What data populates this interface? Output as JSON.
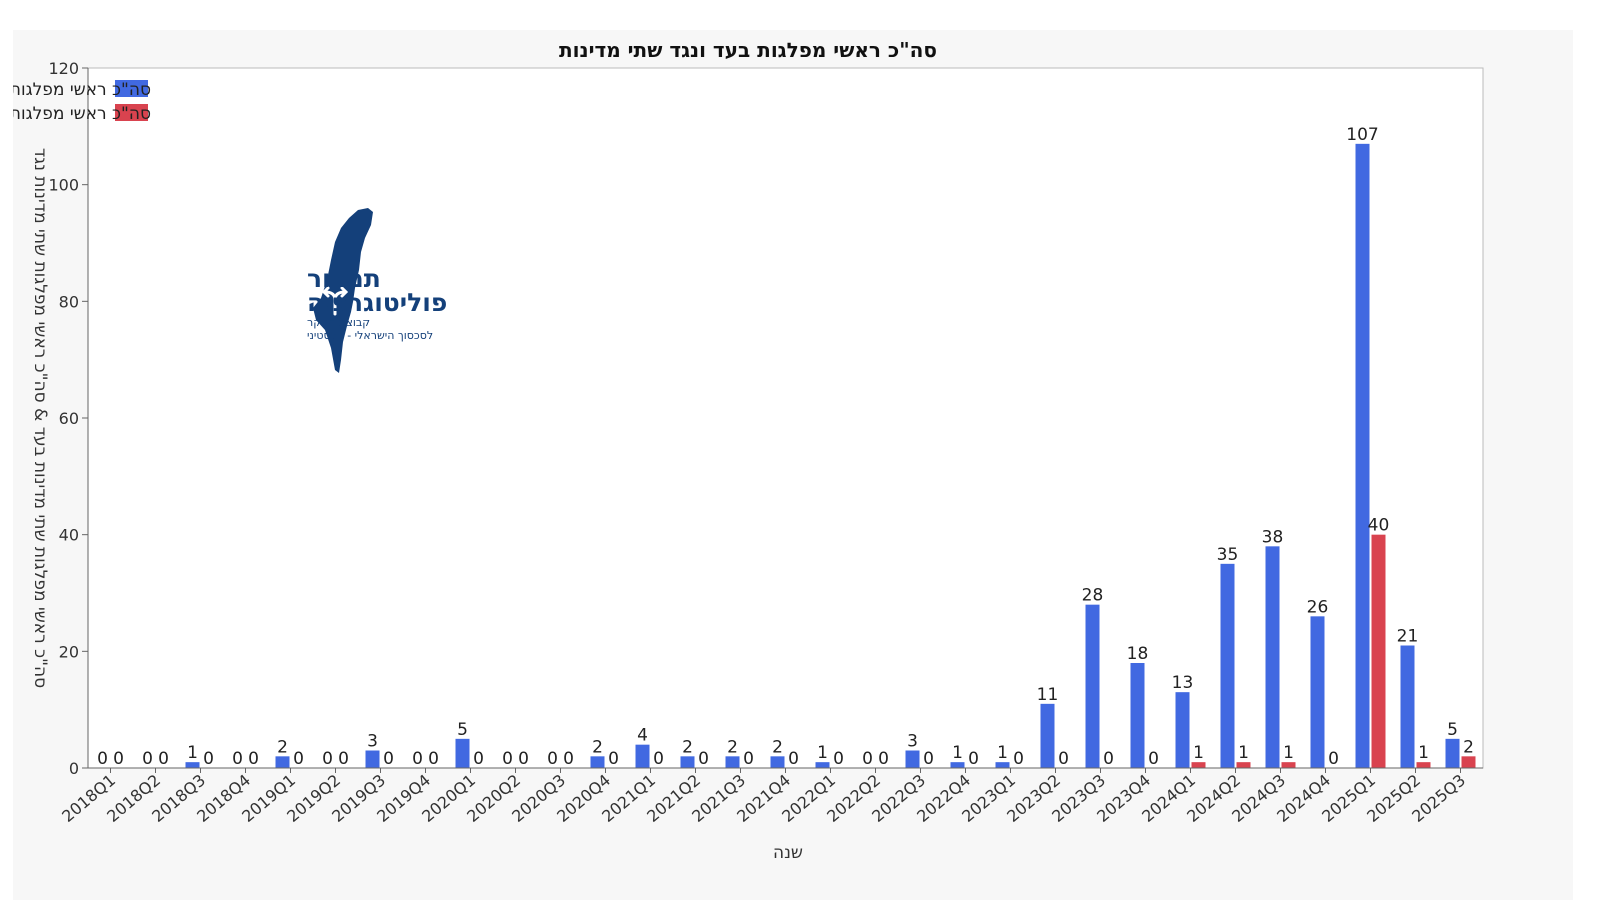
{
  "chart_data": {
    "type": "bar",
    "title": "סה\"כ ראשי מפלגות בעד ונגד שתי מדינות",
    "xlabel": "שנה",
    "ylabel": "סה\"כ ראשי מפלגות שתי מדינות בעד & סה\"כ ראשי מפלגות שתי מדינות נגד",
    "ylim": [
      0,
      120
    ],
    "yticks": [
      "0",
      "20",
      "40",
      "60",
      "80",
      "100",
      "120"
    ],
    "grid": false,
    "legend_position": "top-left",
    "categories": [
      "2018Q1",
      "2018Q2",
      "2018Q3",
      "2018Q4",
      "2019Q1",
      "2019Q2",
      "2019Q3",
      "2019Q4",
      "2020Q1",
      "2020Q2",
      "2020Q3",
      "2020Q4",
      "2021Q1",
      "2021Q2",
      "2021Q3",
      "2021Q4",
      "2022Q1",
      "2022Q2",
      "2022Q3",
      "2022Q4",
      "2023Q1",
      "2023Q2",
      "2023Q3",
      "2023Q4",
      "2024Q1",
      "2024Q2",
      "2024Q3",
      "2024Q4",
      "2025Q1",
      "2025Q2",
      "2025Q3"
    ],
    "series": [
      {
        "name": "סה\"כ ראשי מפלגות שתי מדינות בעד",
        "color": "#4169e1",
        "values": [
          0,
          0,
          1,
          0,
          2,
          0,
          3,
          0,
          5,
          0,
          0,
          2,
          4,
          2,
          2,
          2,
          1,
          0,
          3,
          1,
          1,
          11,
          28,
          18,
          13,
          35,
          38,
          26,
          107,
          21,
          5
        ]
      },
      {
        "name": "סה\"כ ראשי מפלגות שתי מדינות נגד",
        "color": "#d9434f",
        "values": [
          0,
          0,
          0,
          0,
          0,
          0,
          0,
          0,
          0,
          0,
          0,
          0,
          0,
          0,
          0,
          0,
          0,
          0,
          0,
          0,
          0,
          0,
          0,
          0,
          1,
          1,
          1,
          0,
          40,
          1,
          2
        ]
      }
    ]
  },
  "logo": {
    "title_line1": "תמרור",
    "title_line2": "פוליטוגרפיה",
    "subtitle_line1": "קבוצת מחקר",
    "subtitle_line2": "לסכסוך הישראלי - פלסטיני",
    "color": "#14407a"
  }
}
